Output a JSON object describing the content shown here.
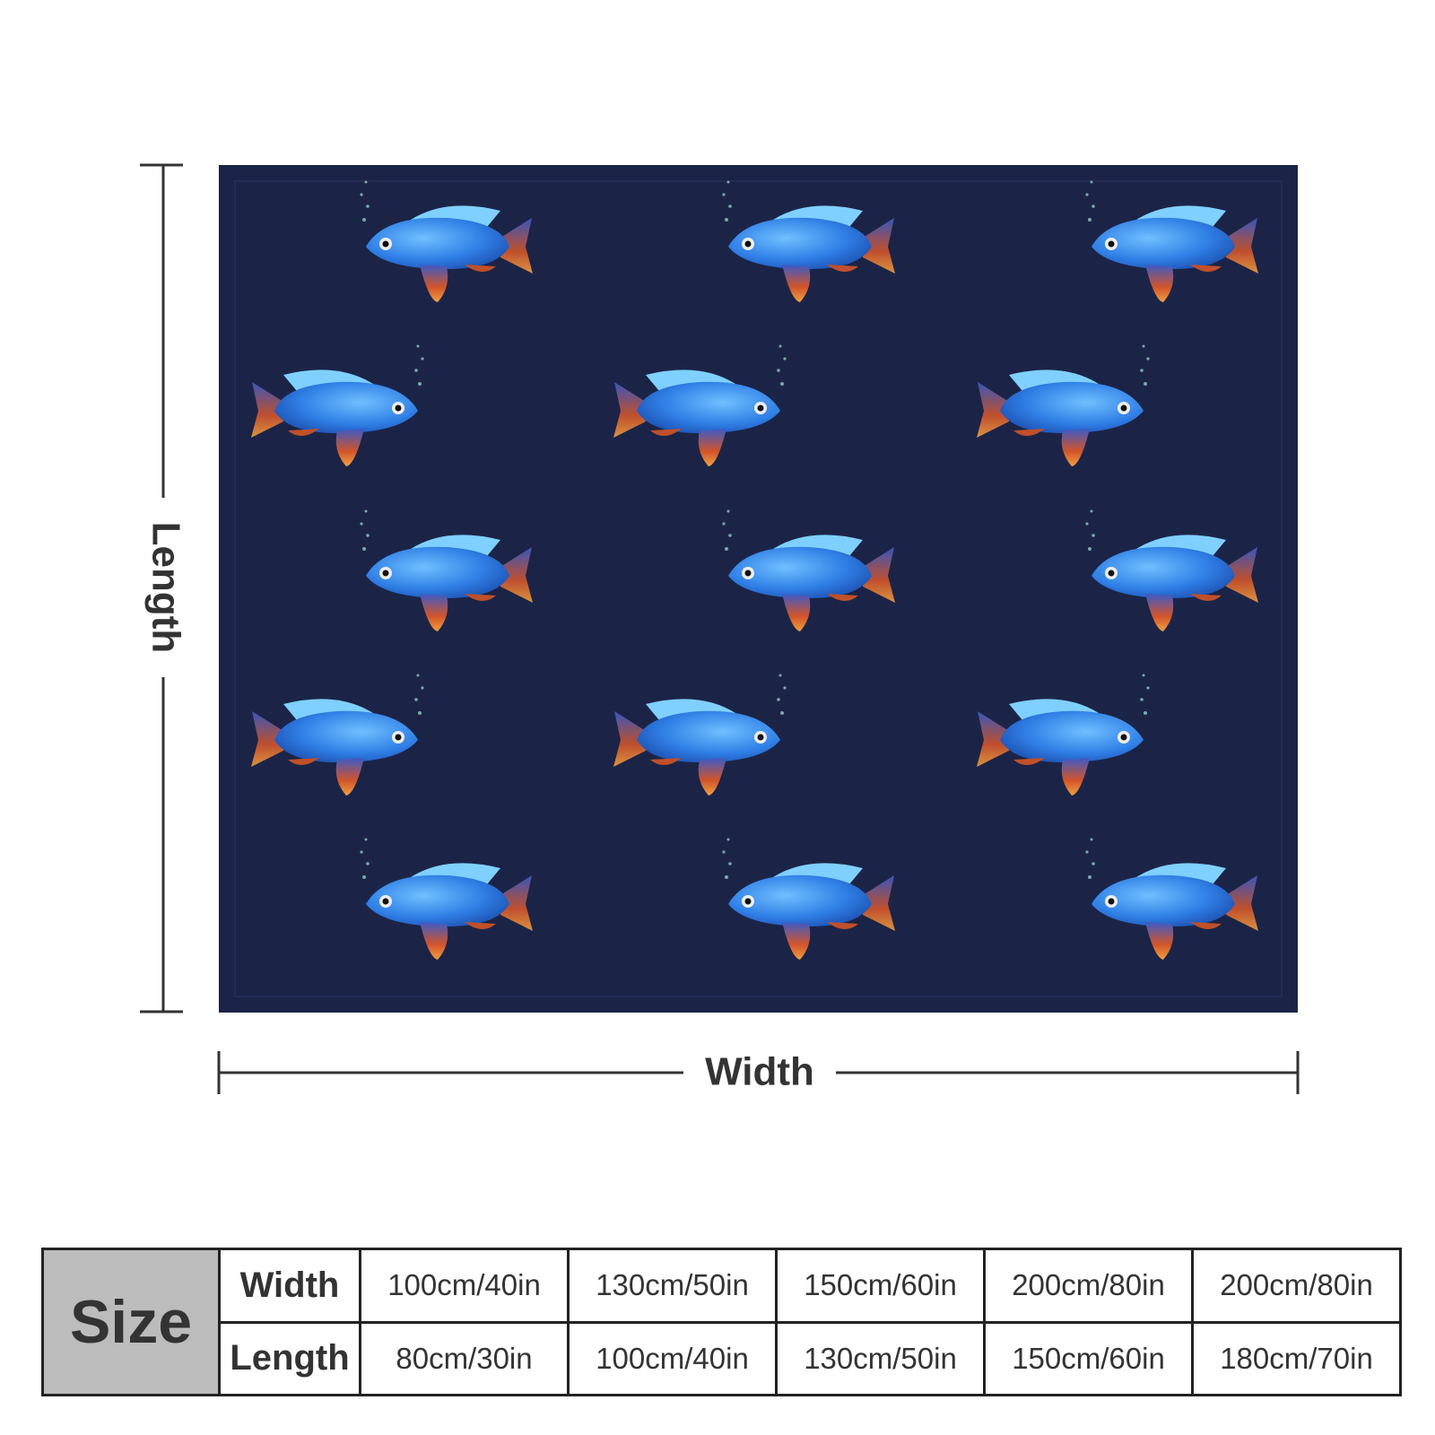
{
  "dimensions": {
    "length_label": "Length",
    "width_label": "Width"
  },
  "table": {
    "size_label": "Size",
    "rows": [
      [
        "Width",
        "100cm/40in",
        "130cm/50in",
        "150cm/60in",
        "200cm/80in",
        "200cm/80in"
      ],
      [
        "Length",
        "80cm/30in",
        "100cm/40in",
        "130cm/50in",
        "150cm/60in",
        "180cm/70in"
      ]
    ]
  }
}
